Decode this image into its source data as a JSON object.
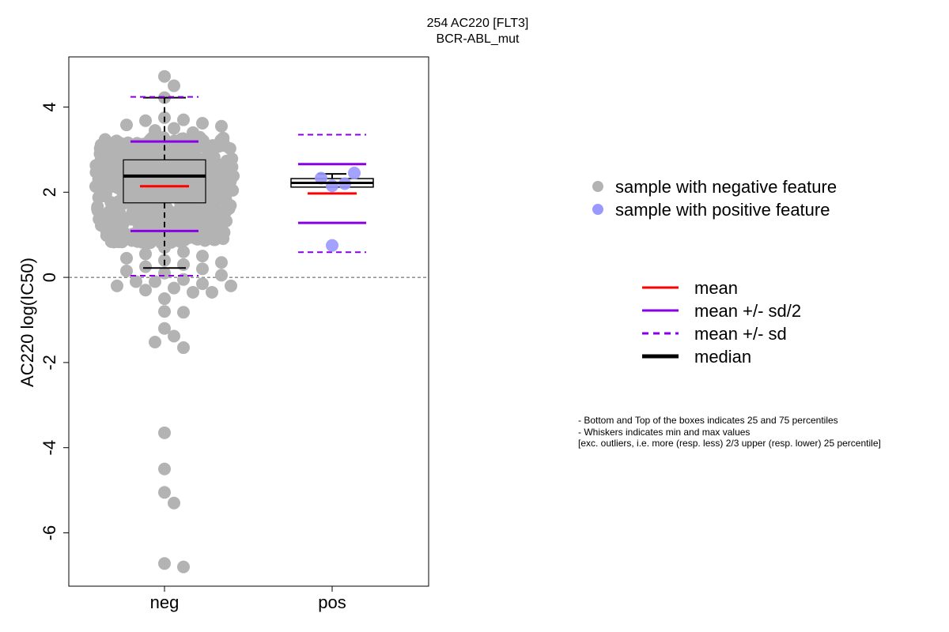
{
  "chart_data": {
    "type": "boxplot_beeswarm",
    "title": "254 AC220 [FLT3]",
    "subtitle": "BCR-ABL_mut",
    "ylabel": "AC220 log(IC50)",
    "xlabel": "",
    "ylim": [
      -7.3,
      5.0
    ],
    "yticks": [
      "4",
      "2",
      "0",
      "-2",
      "-4",
      "-6"
    ],
    "ytick_values": [
      4,
      2,
      0,
      -2,
      -4,
      -6
    ],
    "reference_line": 0,
    "categories": [
      "neg",
      "pos"
    ],
    "groups": [
      {
        "name": "neg",
        "box": {
          "q1": 1.75,
          "median": 2.38,
          "q3": 2.76,
          "whisker_low": 0.22,
          "whisker_high": 4.22
        },
        "mean": 2.14,
        "sd": 2.1,
        "dense_range": [
          0.8,
          3.3
        ],
        "n_dense": 560,
        "points": [
          4.72,
          4.5,
          4.22,
          3.75,
          3.7,
          3.68,
          3.62,
          3.58,
          3.55,
          3.5,
          3.45,
          3.4,
          0.7,
          0.6,
          0.55,
          0.5,
          0.45,
          0.4,
          0.35,
          0.3,
          0.25,
          0.2,
          0.15,
          0.1,
          0.05,
          -0.05,
          -0.1,
          -0.1,
          -0.15,
          -0.2,
          -0.2,
          -0.25,
          -0.3,
          -0.35,
          -0.35,
          -0.5,
          -0.8,
          -0.82,
          -1.2,
          -1.38,
          -1.52,
          -1.65,
          -3.65,
          -4.5,
          -5.05,
          -5.3,
          -6.72,
          -6.8
        ]
      },
      {
        "name": "pos",
        "box": {
          "q1": 2.12,
          "median": 2.22,
          "q3": 2.32,
          "whisker_low": 2.12,
          "whisker_high": 2.43
        },
        "mean": 1.97,
        "sd": 1.38,
        "points": [
          2.45,
          2.33,
          2.2,
          2.15,
          0.75
        ]
      }
    ],
    "legend": [
      {
        "label": "sample with negative feature",
        "color": "#b3b3b3",
        "marker": "circle"
      },
      {
        "label": "sample with positive feature",
        "color": "#9999ff",
        "marker": "circle"
      }
    ],
    "line_legend": [
      {
        "label": "mean",
        "color": "#ff0000",
        "style": "solid"
      },
      {
        "label": "mean +/- sd/2",
        "color": "#8a00e6",
        "style": "solid"
      },
      {
        "label": "mean +/- sd",
        "color": "#8a00e6",
        "style": "dashed"
      },
      {
        "label": "median",
        "color": "#000000",
        "style": "thick"
      }
    ],
    "notes": [
      "- Bottom and Top of the boxes indicates 25 and 75 percentiles",
      "- Whiskers indicates min and max values",
      "[exc. outliers, i.e. more (resp. less) 2/3 upper (resp. lower) 25 percentile]"
    ],
    "colors": {
      "neg": "#b3b3b3",
      "pos": "#9999ff",
      "mean": "#ff0000",
      "sd": "#8a00e6",
      "box_fill_neg": "#b3b3b3",
      "box_fill_pos": "#ffffff"
    }
  }
}
